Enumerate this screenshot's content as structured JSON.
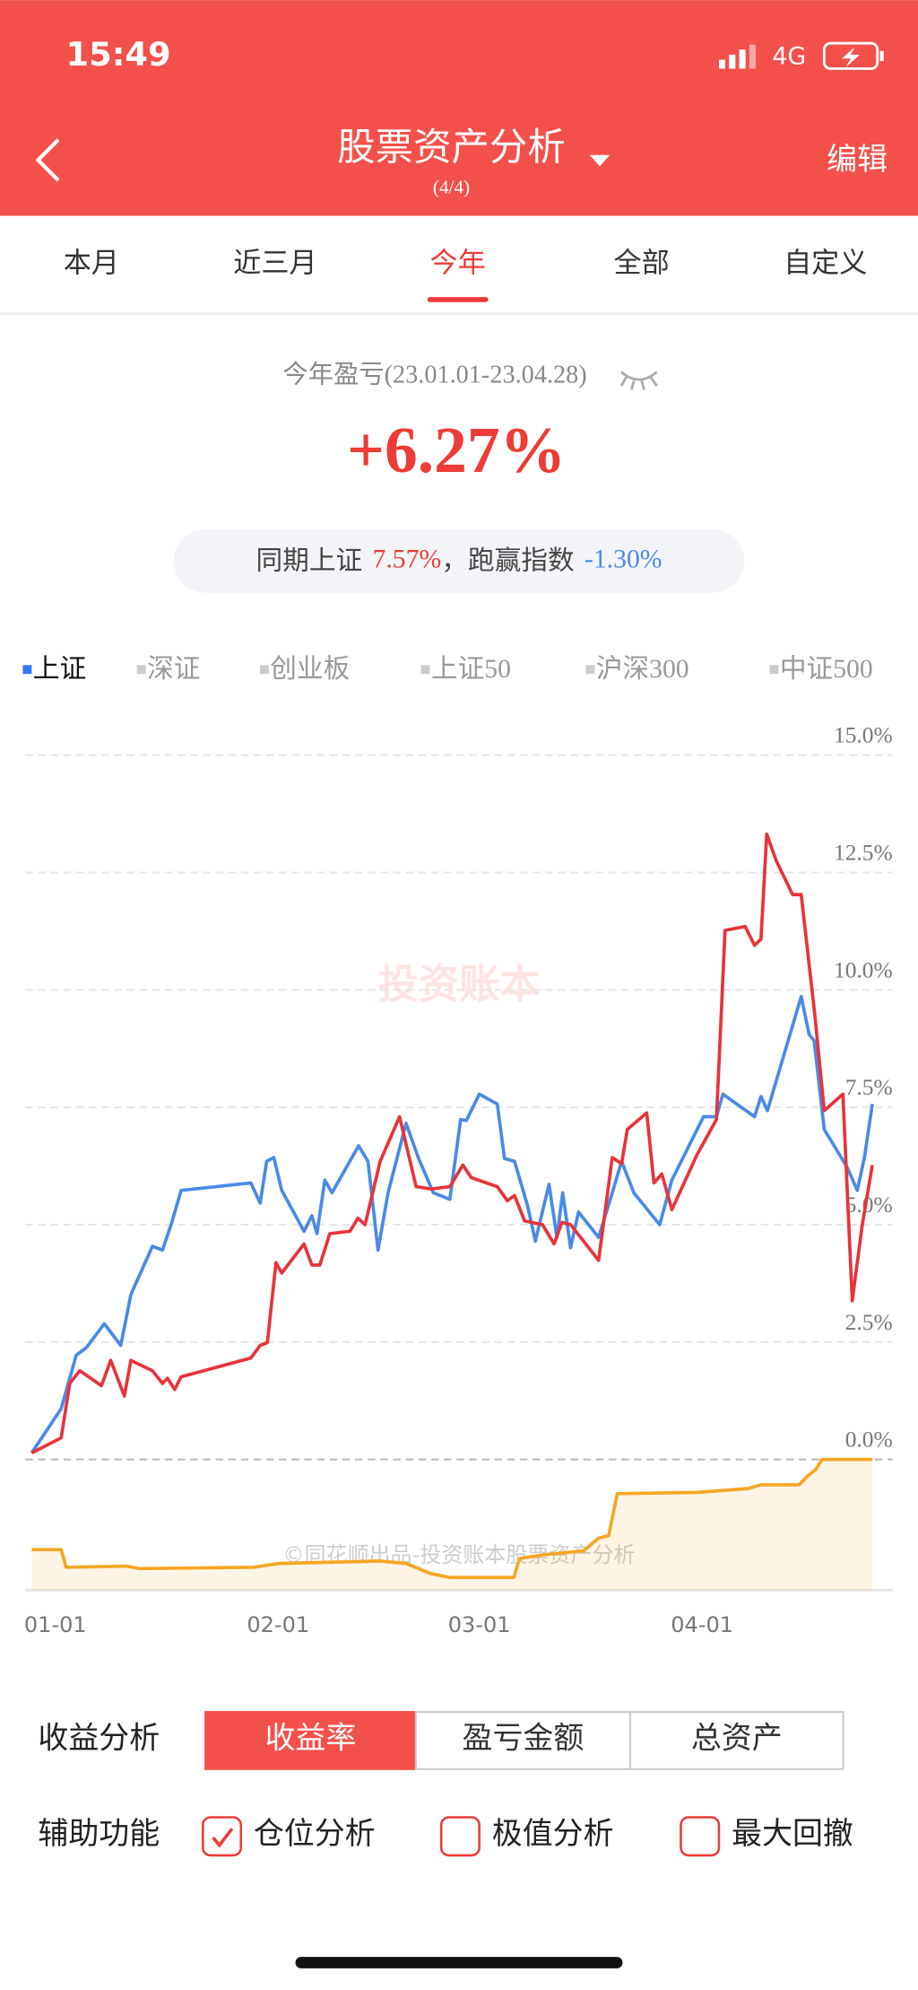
{
  "status": {
    "time": "15:49",
    "network": "4G"
  },
  "header": {
    "title": "股票资产分析",
    "subtitle": "(4/4)",
    "action": "编辑"
  },
  "tabs": {
    "items": [
      "本月",
      "近三月",
      "今年",
      "全部",
      "自定义"
    ],
    "selected_index": 2
  },
  "summary": {
    "label": "今年盈亏(23.01.01-23.04.28)",
    "value": "+6.27%",
    "compare_label": "同期上证",
    "compare_value": "7.57%",
    "beat_label": "，跑赢指数",
    "beat_value": "-1.30%"
  },
  "index_tabs": {
    "items": [
      "上证",
      "深证",
      "创业板",
      "上证50",
      "沪深300",
      "中证500"
    ],
    "selected_index": 0
  },
  "chart_data": {
    "type": "line",
    "watermark": "投资账本",
    "footer": "©同花顺出品-投资账本股票资产分析",
    "xlim": [
      0,
      117
    ],
    "xticks": [
      {
        "value": 0,
        "label": "01-01"
      },
      {
        "value": 31,
        "label": "02-01"
      },
      {
        "value": 59,
        "label": "03-01"
      },
      {
        "value": 90,
        "label": "04-01"
      }
    ],
    "ylim": [
      0,
      15
    ],
    "yticks": [
      {
        "value": 0,
        "label": "0.0%"
      },
      {
        "value": 2.5,
        "label": "2.5%"
      },
      {
        "value": 5,
        "label": "5.0%"
      },
      {
        "value": 7.5,
        "label": "7.5%"
      },
      {
        "value": 10,
        "label": "10.0%"
      },
      {
        "value": 12.5,
        "label": "12.5%"
      },
      {
        "value": 15,
        "label": "15.0%"
      }
    ],
    "y3lim": [
      0,
      100
    ],
    "grid": true,
    "series": [
      {
        "color": "#e8333a",
        "x": [
          0,
          4.1,
          5.3,
          6.7,
          9.7,
          11,
          12.9,
          13.8,
          16.8,
          18.2,
          18.9,
          19.9,
          20.8,
          30.5,
          31.8,
          32.8,
          34,
          34.8,
          37.9,
          39,
          40.1,
          41.5,
          44.3,
          45.4,
          46.4,
          48.5,
          51.2,
          53.5,
          55.6,
          58.2,
          60,
          61.2,
          64.8,
          66.2,
          67.2,
          68.6,
          71.1,
          72.7,
          73.8,
          75,
          78.9,
          80.8,
          82.1,
          82.9,
          85.6,
          86.6,
          87.7,
          89.1,
          92.6,
          95.3,
          96.5,
          99.3,
          100.6,
          101.5,
          102.3,
          103.6,
          105.9,
          107.1,
          109,
          110.3,
          112.9,
          114.2,
          115.6,
          117
        ],
        "values": [
          0.14,
          0.46,
          1.62,
          1.89,
          1.57,
          2.11,
          1.35,
          2.11,
          1.89,
          1.62,
          1.73,
          1.49,
          1.76,
          2.16,
          2.43,
          2.49,
          4.19,
          3.97,
          4.59,
          4.14,
          4.14,
          4.81,
          4.86,
          5.14,
          5,
          6.35,
          7.3,
          5.81,
          5.76,
          5.81,
          6.27,
          6,
          5.81,
          5.51,
          5.62,
          5.08,
          5,
          4.59,
          5.05,
          5,
          4.24,
          6.43,
          6.3,
          7.03,
          7.38,
          5.89,
          6.08,
          5.32,
          6.49,
          7.24,
          11.27,
          11.35,
          10.95,
          11.08,
          13.32,
          12.76,
          12.03,
          12.03,
          9.46,
          7.43,
          7.78,
          3.38,
          5,
          6.27
        ]
      },
      {
        "color": "#4a8ae6",
        "x": [
          0,
          4.1,
          6.2,
          7.6,
          10.1,
          12.4,
          13.8,
          16.8,
          18.2,
          19.4,
          20.8,
          30.5,
          31.8,
          32.7,
          33.7,
          34.8,
          37.9,
          39,
          39.7,
          40.8,
          41.8,
          45.5,
          46.8,
          48.2,
          49.6,
          52.1,
          53.8,
          55.9,
          58.2,
          59.7,
          60.5,
          62.3,
          64.8,
          65.8,
          67.2,
          69,
          70.1,
          72,
          73.1,
          73.9,
          75,
          76.1,
          78.9,
          80.8,
          82.1,
          83.8,
          87.4,
          89.1,
          93.5,
          95.3,
          96.2,
          100.6,
          101.5,
          102.4,
          107.1,
          108.2,
          108.9,
          110.3,
          113.5,
          114.9,
          115.9,
          117
        ],
        "values": [
          0.14,
          1.08,
          2.22,
          2.38,
          2.89,
          2.43,
          3.51,
          4.54,
          4.46,
          5,
          5.73,
          5.89,
          5.46,
          6.35,
          6.43,
          5.73,
          4.86,
          5.19,
          4.81,
          5.95,
          5.68,
          6.68,
          6.35,
          4.46,
          5.68,
          7.16,
          6.43,
          5.68,
          5.54,
          7.24,
          7.22,
          7.78,
          7.57,
          6.41,
          6.35,
          5.41,
          4.65,
          5.86,
          4.73,
          5.68,
          4.51,
          5.27,
          4.73,
          5.68,
          6.35,
          5.68,
          5,
          5.95,
          7.3,
          7.3,
          7.78,
          7.3,
          7.73,
          7.43,
          9.86,
          9.05,
          8.92,
          7.03,
          6.22,
          5.73,
          6.43,
          7.57
        ]
      },
      {
        "color": "#f5a623",
        "axis": "y3",
        "x": [
          0,
          4.1,
          4.8,
          13.2,
          15,
          30.9,
          34.4,
          48.5,
          52.1,
          55.6,
          58.2,
          67.1,
          67.9,
          71.5,
          76.8,
          78.9,
          80.3,
          81.5,
          92.6,
          99.7,
          101.5,
          106.8,
          108,
          109.1,
          110,
          117
        ],
        "values": [
          31,
          31,
          17.5,
          18.4,
          16.5,
          17.5,
          20.4,
          22.3,
          20.4,
          12.6,
          9.7,
          9.7,
          24.3,
          27.2,
          30.1,
          39.8,
          41.7,
          73.8,
          74.8,
          77.7,
          80.6,
          80.6,
          87.4,
          92.2,
          100,
          100
        ]
      }
    ]
  },
  "controls": {
    "analysis_label": "收益分析",
    "analysis_options": [
      "收益率",
      "盈亏金额",
      "总资产"
    ],
    "analysis_selected": 0,
    "aux_label": "辅助功能",
    "aux_options": [
      "仓位分析",
      "极值分析",
      "最大回撤"
    ],
    "aux_checked": [
      true,
      false,
      false
    ]
  }
}
